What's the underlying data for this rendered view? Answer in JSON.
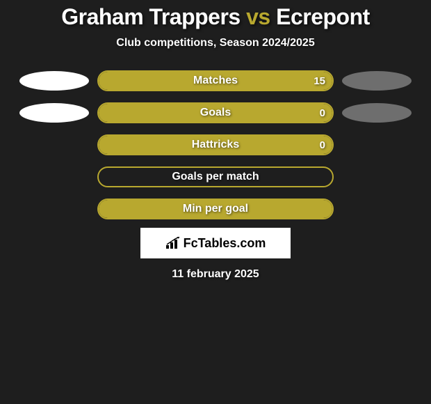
{
  "header": {
    "player1": "Graham Trappers",
    "vs": "vs",
    "player2": "Ecrepont",
    "subtitle": "Club competitions, Season 2024/2025"
  },
  "colors": {
    "accent": "#b8a82f",
    "bubble_left": "#ffffff",
    "bubble_right": "#6e6e6e",
    "background": "#1e1e1e"
  },
  "stats": [
    {
      "label": "Matches",
      "value": "15",
      "fill_pct": 100,
      "show_bubbles": true,
      "show_value": true
    },
    {
      "label": "Goals",
      "value": "0",
      "fill_pct": 100,
      "show_bubbles": true,
      "show_value": true
    },
    {
      "label": "Hattricks",
      "value": "0",
      "fill_pct": 100,
      "show_bubbles": false,
      "show_value": true
    },
    {
      "label": "Goals per match",
      "value": "",
      "fill_pct": 0,
      "show_bubbles": false,
      "show_value": false
    },
    {
      "label": "Min per goal",
      "value": "",
      "fill_pct": 100,
      "show_bubbles": false,
      "show_value": false
    }
  ],
  "brand": {
    "text": "FcTables.com"
  },
  "date": "11 february 2025"
}
